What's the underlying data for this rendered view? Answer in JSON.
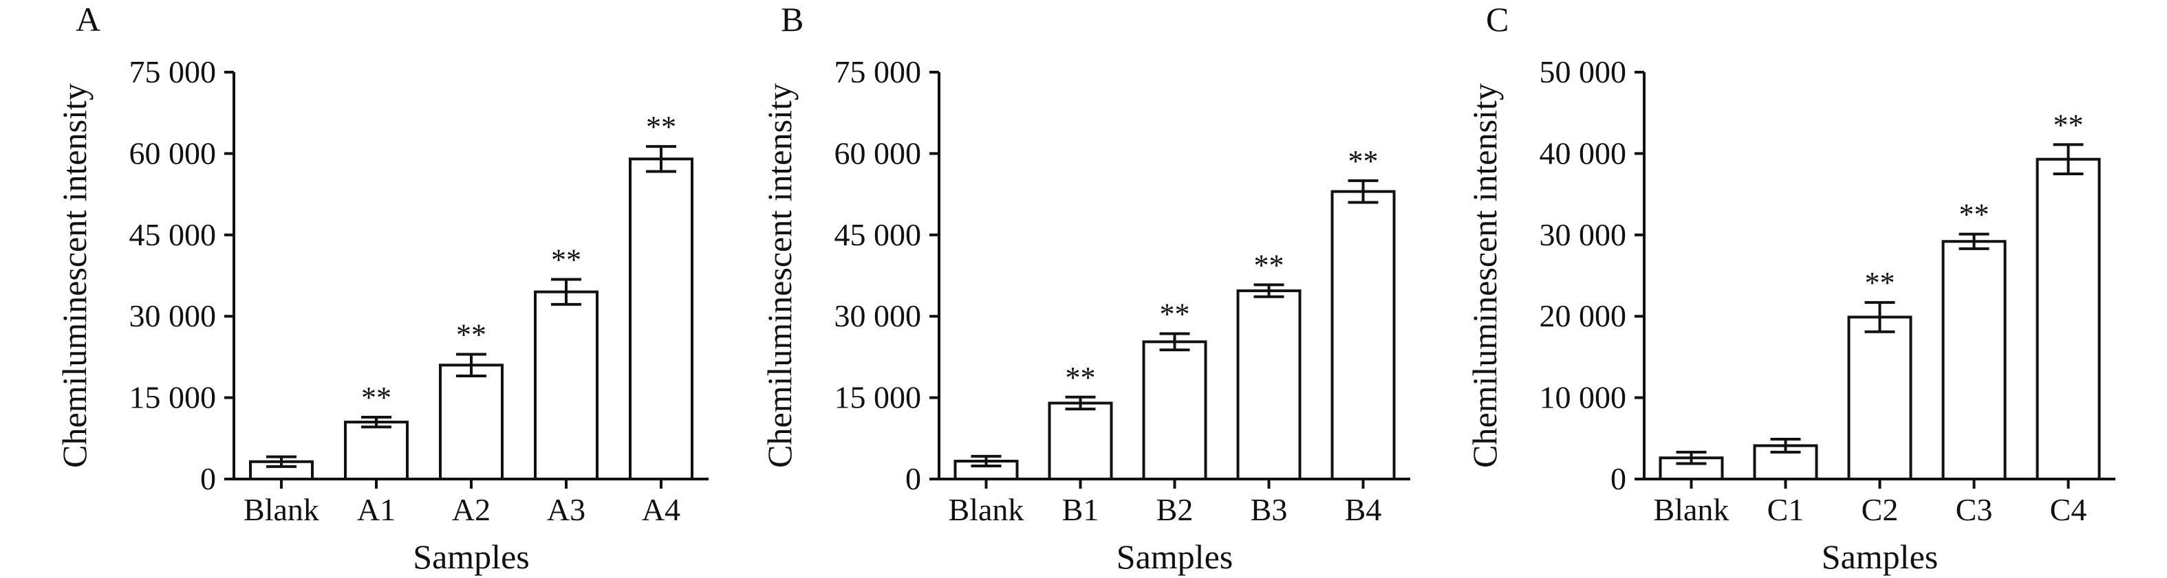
{
  "chart_data": [
    {
      "type": "bar",
      "panel": "A",
      "categories": [
        "Blank",
        "A1",
        "A2",
        "A3",
        "A4"
      ],
      "values": [
        3200,
        10500,
        21000,
        34500,
        59000
      ],
      "errors": [
        900,
        900,
        2000,
        2300,
        2300
      ],
      "significance": [
        "",
        "**",
        "**",
        "**",
        "**"
      ],
      "ylim": [
        0,
        75000
      ],
      "yticks": [
        0,
        15000,
        30000,
        45000,
        60000,
        75000
      ],
      "ytick_labels": [
        "0",
        "15 000",
        "30 000",
        "45 000",
        "60 000",
        "75 000"
      ],
      "xlabel": "Samples",
      "ylabel": "Chemiluminescent intensity"
    },
    {
      "type": "bar",
      "panel": "B",
      "categories": [
        "Blank",
        "B1",
        "B2",
        "B3",
        "B4"
      ],
      "values": [
        3300,
        14000,
        25300,
        34700,
        53000
      ],
      "errors": [
        900,
        1100,
        1500,
        1100,
        2000
      ],
      "significance": [
        "",
        "**",
        "**",
        "**",
        "**"
      ],
      "ylim": [
        0,
        75000
      ],
      "yticks": [
        0,
        15000,
        30000,
        45000,
        60000,
        75000
      ],
      "ytick_labels": [
        "0",
        "15 000",
        "30 000",
        "45 000",
        "60 000",
        "75 000"
      ],
      "xlabel": "Samples",
      "ylabel": "Chemiluminescent intensity"
    },
    {
      "type": "bar",
      "panel": "C",
      "categories": [
        "Blank",
        "C1",
        "C2",
        "C3",
        "C4"
      ],
      "values": [
        2600,
        4100,
        19900,
        29200,
        39300
      ],
      "errors": [
        700,
        800,
        1800,
        900,
        1800
      ],
      "significance": [
        "",
        "",
        "**",
        "**",
        "**"
      ],
      "ylim": [
        0,
        50000
      ],
      "yticks": [
        0,
        10000,
        20000,
        30000,
        40000,
        50000
      ],
      "ytick_labels": [
        "0",
        "10 000",
        "20 000",
        "30 000",
        "40 000",
        "50 000"
      ],
      "xlabel": "Samples",
      "ylabel": "Chemiluminescent intensity"
    }
  ]
}
